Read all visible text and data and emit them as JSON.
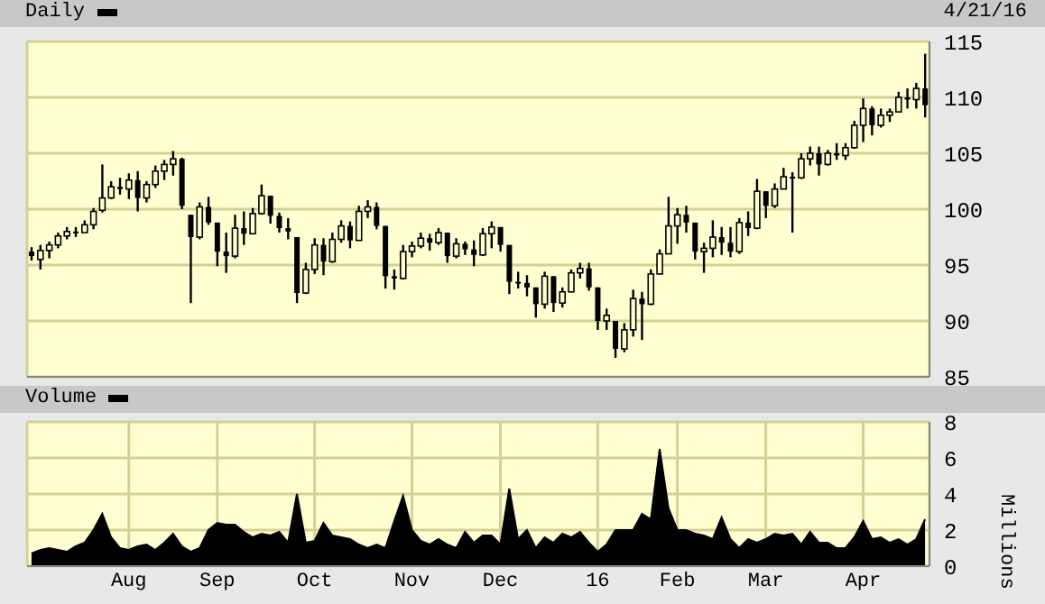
{
  "chart_data": [
    {
      "type": "candlestick",
      "title": "Daily",
      "color": "#000000",
      "annotations": [
        "4/21/16"
      ],
      "tick_labels": "y",
      "grid": true,
      "ylim": [
        85,
        115
      ],
      "yticks": [
        85,
        90,
        95,
        100,
        105,
        110,
        115
      ],
      "ohlc": [
        [
          96.2,
          96.6,
          95.4,
          95.8
        ],
        [
          95.5,
          96.8,
          94.6,
          96.3
        ],
        [
          96.3,
          97.1,
          95.6,
          96.8
        ],
        [
          96.8,
          97.9,
          96.5,
          97.6
        ],
        [
          97.6,
          98.4,
          97.3,
          98.0
        ],
        [
          98.0,
          98.4,
          97.5,
          97.9
        ],
        [
          97.9,
          99.0,
          97.9,
          98.6
        ],
        [
          98.6,
          100.1,
          98.2,
          99.8
        ],
        [
          99.9,
          104.0,
          99.7,
          101.0
        ],
        [
          101.0,
          102.5,
          100.9,
          102.0
        ],
        [
          102.0,
          102.8,
          101.3,
          101.8
        ],
        [
          101.8,
          103.2,
          100.9,
          102.6
        ],
        [
          102.6,
          103.4,
          99.8,
          101.0
        ],
        [
          101.0,
          102.5,
          100.6,
          102.2
        ],
        [
          102.2,
          103.9,
          101.9,
          103.4
        ],
        [
          103.4,
          104.4,
          102.6,
          104.0
        ],
        [
          104.0,
          105.2,
          103.0,
          104.5
        ],
        [
          104.5,
          104.6,
          100.0,
          100.3
        ],
        [
          99.5,
          99.5,
          91.6,
          97.5
        ],
        [
          97.5,
          100.6,
          97.3,
          100.2
        ],
        [
          100.2,
          101.1,
          98.6,
          98.8
        ],
        [
          98.8,
          98.8,
          94.9,
          96.2
        ],
        [
          96.2,
          97.9,
          94.3,
          95.8
        ],
        [
          95.8,
          99.5,
          95.6,
          98.3
        ],
        [
          98.3,
          99.8,
          96.8,
          97.8
        ],
        [
          97.8,
          100.1,
          97.8,
          99.6
        ],
        [
          99.6,
          102.2,
          99.5,
          101.2
        ],
        [
          101.2,
          101.2,
          98.7,
          99.4
        ],
        [
          99.4,
          99.7,
          97.9,
          98.3
        ],
        [
          98.3,
          99.2,
          97.3,
          98.0
        ],
        [
          97.5,
          97.5,
          91.6,
          92.5
        ],
        [
          92.5,
          95.2,
          92.4,
          94.6
        ],
        [
          94.6,
          97.4,
          94.2,
          96.8
        ],
        [
          96.8,
          97.4,
          94.1,
          95.3
        ],
        [
          95.3,
          97.9,
          95.2,
          97.3
        ],
        [
          97.3,
          99.0,
          97.0,
          98.5
        ],
        [
          98.5,
          98.9,
          96.5,
          97.2
        ],
        [
          97.2,
          100.3,
          97.2,
          99.8
        ],
        [
          99.8,
          100.8,
          99.2,
          100.2
        ],
        [
          100.2,
          100.6,
          98.2,
          98.5
        ],
        [
          98.5,
          98.5,
          92.9,
          94.0
        ],
        [
          94.0,
          94.6,
          92.8,
          93.8
        ],
        [
          93.8,
          96.8,
          93.7,
          96.2
        ],
        [
          96.2,
          97.1,
          95.7,
          96.7
        ],
        [
          96.7,
          97.9,
          96.5,
          97.4
        ],
        [
          97.4,
          97.8,
          96.3,
          97.0
        ],
        [
          97.0,
          98.3,
          96.8,
          97.9
        ],
        [
          97.9,
          97.9,
          95.2,
          95.8
        ],
        [
          95.8,
          97.4,
          95.6,
          96.9
        ],
        [
          96.9,
          97.1,
          95.9,
          96.4
        ],
        [
          96.4,
          97.2,
          94.9,
          95.9
        ],
        [
          95.9,
          98.3,
          95.8,
          97.8
        ],
        [
          97.8,
          98.9,
          96.5,
          98.4
        ],
        [
          98.4,
          98.4,
          96.2,
          96.8
        ],
        [
          96.8,
          96.8,
          92.4,
          93.5
        ],
        [
          93.5,
          94.4,
          92.9,
          93.4
        ],
        [
          93.4,
          94.1,
          92.2,
          93.0
        ],
        [
          93.0,
          93.0,
          90.3,
          91.5
        ],
        [
          91.5,
          94.4,
          91.1,
          94.0
        ],
        [
          94.0,
          94.0,
          90.8,
          91.6
        ],
        [
          91.6,
          93.0,
          91.2,
          92.6
        ],
        [
          92.6,
          94.6,
          92.6,
          94.3
        ],
        [
          94.3,
          95.2,
          93.8,
          94.7
        ],
        [
          94.7,
          95.2,
          92.7,
          93.0
        ],
        [
          93.0,
          93.0,
          89.2,
          90.0
        ],
        [
          90.0,
          91.1,
          89.2,
          90.5
        ],
        [
          90.0,
          90.0,
          86.7,
          87.5
        ],
        [
          87.5,
          89.8,
          87.2,
          89.2
        ],
        [
          89.2,
          92.8,
          88.6,
          92.0
        ],
        [
          92.0,
          92.6,
          88.3,
          91.5
        ],
        [
          91.5,
          94.6,
          91.4,
          94.2
        ],
        [
          94.2,
          96.4,
          94.2,
          96.0
        ],
        [
          96.0,
          101.1,
          96.0,
          98.5
        ],
        [
          98.5,
          100.1,
          96.9,
          99.5
        ],
        [
          99.5,
          100.3,
          97.9,
          98.8
        ],
        [
          98.8,
          98.8,
          95.5,
          96.2
        ],
        [
          96.2,
          97.0,
          94.3,
          96.5
        ],
        [
          96.5,
          99.0,
          95.7,
          97.5
        ],
        [
          97.5,
          98.4,
          95.9,
          97.0
        ],
        [
          97.0,
          98.4,
          95.7,
          96.2
        ],
        [
          96.2,
          99.2,
          96.0,
          98.8
        ],
        [
          98.8,
          99.8,
          97.6,
          98.3
        ],
        [
          98.3,
          102.7,
          98.2,
          101.6
        ],
        [
          101.6,
          101.6,
          99.2,
          100.3
        ],
        [
          100.3,
          102.3,
          100.1,
          101.8
        ],
        [
          101.8,
          103.7,
          101.8,
          102.9
        ],
        [
          102.9,
          103.3,
          97.9,
          102.8
        ],
        [
          102.8,
          105.0,
          102.7,
          104.5
        ],
        [
          104.5,
          105.6,
          103.9,
          105.0
        ],
        [
          105.0,
          105.6,
          103.0,
          104.0
        ],
        [
          104.0,
          105.3,
          103.9,
          105.0
        ],
        [
          105.0,
          105.9,
          104.4,
          104.8
        ],
        [
          104.8,
          105.9,
          104.4,
          105.5
        ],
        [
          105.5,
          107.9,
          105.4,
          107.5
        ],
        [
          107.5,
          109.9,
          106.0,
          109.0
        ],
        [
          109.0,
          109.2,
          106.6,
          107.5
        ],
        [
          107.5,
          109.0,
          107.3,
          108.4
        ],
        [
          108.4,
          109.0,
          107.8,
          108.7
        ],
        [
          108.7,
          110.5,
          108.7,
          110.0
        ],
        [
          110.0,
          110.8,
          109.0,
          109.8
        ],
        [
          109.8,
          111.3,
          109.0,
          110.8
        ],
        [
          110.8,
          113.9,
          108.2,
          109.3
        ]
      ]
    },
    {
      "type": "area",
      "title": "Volume",
      "ylabel": "Millions",
      "color": "#000000",
      "grid": true,
      "ylim": [
        0,
        8
      ],
      "yticks": [
        0,
        2,
        4,
        6,
        8
      ],
      "categories": [
        null,
        null,
        null,
        null,
        null,
        null,
        null,
        null,
        null,
        null,
        null,
        "Aug",
        null,
        null,
        null,
        null,
        null,
        null,
        null,
        null,
        null,
        "Sep",
        null,
        null,
        null,
        null,
        null,
        null,
        null,
        null,
        null,
        null,
        "Oct",
        null,
        null,
        null,
        null,
        null,
        null,
        null,
        null,
        null,
        null,
        "Nov",
        null,
        null,
        null,
        null,
        null,
        null,
        null,
        null,
        null,
        "Dec",
        null,
        null,
        null,
        null,
        null,
        null,
        null,
        null,
        null,
        null,
        "16",
        null,
        null,
        null,
        null,
        null,
        null,
        null,
        null,
        "Feb",
        null,
        null,
        null,
        null,
        null,
        null,
        null,
        null,
        null,
        "Mar",
        null,
        null,
        null,
        null,
        null,
        null,
        null,
        null,
        null,
        null,
        "Apr",
        null,
        null,
        null,
        null,
        null,
        null,
        null
      ],
      "values": [
        0.7,
        0.9,
        1.0,
        0.9,
        0.8,
        1.1,
        1.3,
        2.0,
        2.9,
        1.6,
        1.0,
        0.9,
        1.1,
        1.2,
        0.9,
        1.3,
        1.8,
        1.1,
        0.8,
        1.0,
        2.0,
        2.4,
        2.3,
        2.3,
        1.9,
        1.6,
        1.8,
        1.7,
        1.9,
        1.3,
        4.0,
        1.3,
        1.4,
        2.4,
        1.7,
        1.6,
        1.5,
        1.2,
        1.0,
        1.2,
        1.0,
        2.5,
        3.9,
        2.0,
        1.4,
        1.2,
        1.5,
        1.2,
        1.0,
        1.9,
        1.3,
        1.7,
        1.7,
        1.2,
        4.3,
        1.5,
        2.0,
        1.0,
        1.6,
        1.3,
        1.8,
        1.6,
        1.9,
        1.3,
        0.8,
        1.2,
        2.0,
        2.0,
        2.0,
        2.9,
        2.6,
        6.5,
        3.2,
        2.0,
        2.0,
        1.8,
        1.7,
        1.5,
        2.7,
        1.5,
        1.0,
        1.5,
        1.3,
        1.5,
        1.8,
        1.7,
        1.8,
        1.2,
        1.9,
        1.3,
        1.3,
        1.0,
        1.0,
        1.6,
        2.5,
        1.5,
        1.6,
        1.3,
        1.5,
        1.2,
        1.5,
        2.6
      ]
    }
  ]
}
